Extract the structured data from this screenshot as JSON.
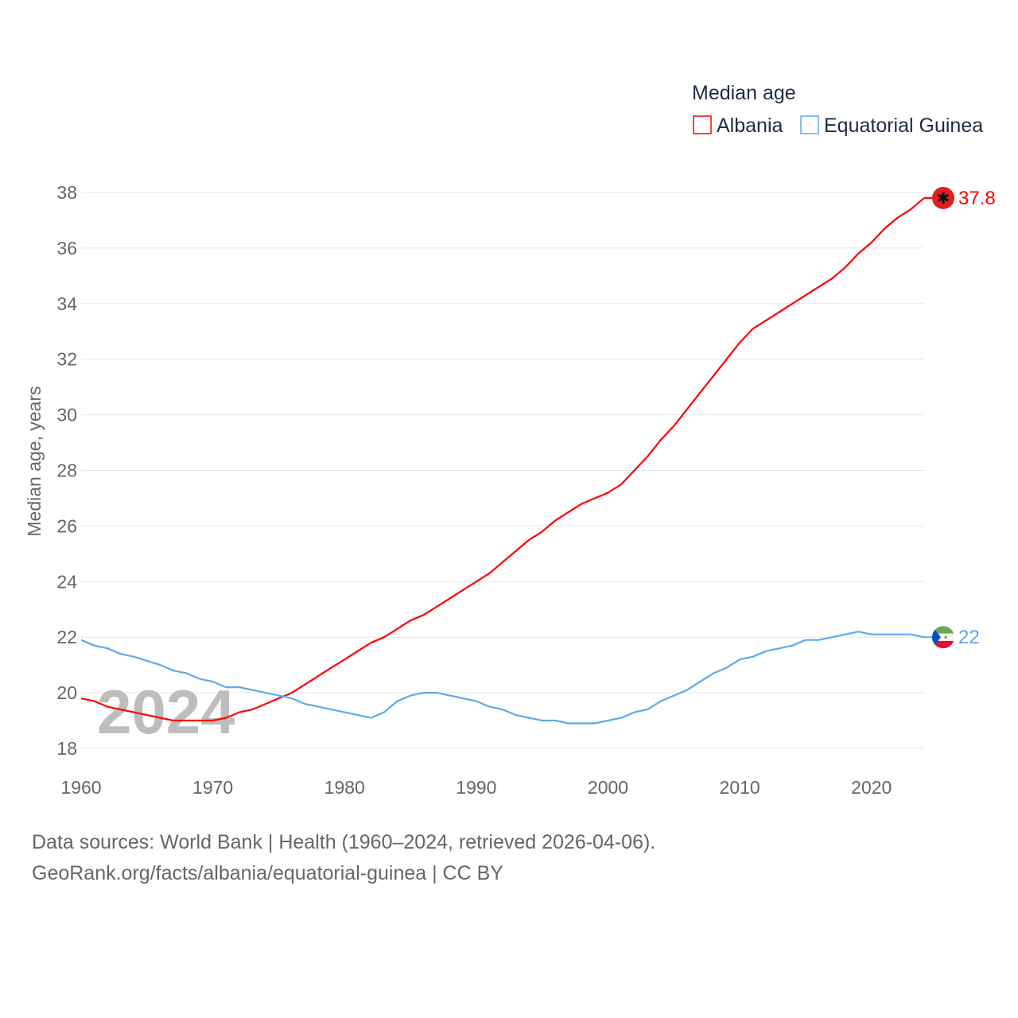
{
  "chart_data": {
    "type": "line",
    "title": "Median age",
    "ylabel": "Median age, years",
    "xlabel": "",
    "ylim": [
      18,
      38
    ],
    "xlim": [
      1960,
      2024
    ],
    "yticks": [
      "18",
      "20",
      "22",
      "24",
      "26",
      "28",
      "30",
      "32",
      "34",
      "36",
      "38"
    ],
    "xticks": [
      "1960",
      "1970",
      "1980",
      "1990",
      "2000",
      "2010",
      "2020"
    ],
    "grid": true,
    "legend_position": "top-right",
    "watermark_year": "2024",
    "x": [
      1960,
      1961,
      1962,
      1963,
      1964,
      1965,
      1966,
      1967,
      1968,
      1969,
      1970,
      1971,
      1972,
      1973,
      1974,
      1975,
      1976,
      1977,
      1978,
      1979,
      1980,
      1981,
      1982,
      1983,
      1984,
      1985,
      1986,
      1987,
      1988,
      1989,
      1990,
      1991,
      1992,
      1993,
      1994,
      1995,
      1996,
      1997,
      1998,
      1999,
      2000,
      2001,
      2002,
      2003,
      2004,
      2005,
      2006,
      2007,
      2008,
      2009,
      2010,
      2011,
      2012,
      2013,
      2014,
      2015,
      2016,
      2017,
      2018,
      2019,
      2020,
      2021,
      2022,
      2023,
      2024
    ],
    "series": [
      {
        "name": "Albania",
        "color": "#ff0000",
        "end_label": "37.8",
        "values": [
          19.8,
          19.7,
          19.5,
          19.4,
          19.3,
          19.2,
          19.1,
          19.0,
          19.0,
          19.0,
          19.0,
          19.1,
          19.3,
          19.4,
          19.6,
          19.8,
          20.0,
          20.3,
          20.6,
          20.9,
          21.2,
          21.5,
          21.8,
          22.0,
          22.3,
          22.6,
          22.8,
          23.1,
          23.4,
          23.7,
          24.0,
          24.3,
          24.7,
          25.1,
          25.5,
          25.8,
          26.2,
          26.5,
          26.8,
          27.0,
          27.2,
          27.5,
          28.0,
          28.5,
          29.1,
          29.6,
          30.2,
          30.8,
          31.4,
          32.0,
          32.6,
          33.1,
          33.4,
          33.7,
          34.0,
          34.3,
          34.6,
          34.9,
          35.3,
          35.8,
          36.2,
          36.7,
          37.1,
          37.4,
          37.8
        ]
      },
      {
        "name": "Equatorial Guinea",
        "color": "#5ea8ef",
        "end_label": "22",
        "values": [
          21.9,
          21.7,
          21.6,
          21.4,
          21.3,
          21.15,
          21.0,
          20.8,
          20.7,
          20.5,
          20.4,
          20.2,
          20.2,
          20.1,
          20.0,
          19.9,
          19.8,
          19.6,
          19.5,
          19.4,
          19.3,
          19.2,
          19.1,
          19.3,
          19.7,
          19.9,
          20.0,
          20.0,
          19.9,
          19.8,
          19.7,
          19.5,
          19.4,
          19.2,
          19.1,
          19.0,
          19.0,
          18.9,
          18.9,
          18.9,
          19.0,
          19.1,
          19.3,
          19.4,
          19.7,
          19.9,
          20.1,
          20.4,
          20.7,
          20.9,
          21.2,
          21.3,
          21.5,
          21.6,
          21.7,
          21.9,
          21.9,
          22.0,
          22.1,
          22.2,
          22.1,
          22.1,
          22.1,
          22.1,
          22.0
        ]
      }
    ]
  },
  "footer": {
    "line1": "Data sources: World Bank | Health (1960–2024, retrieved 2026-04-06).",
    "line2": "GeoRank.org/facts/albania/equatorial-guinea | CC BY"
  }
}
